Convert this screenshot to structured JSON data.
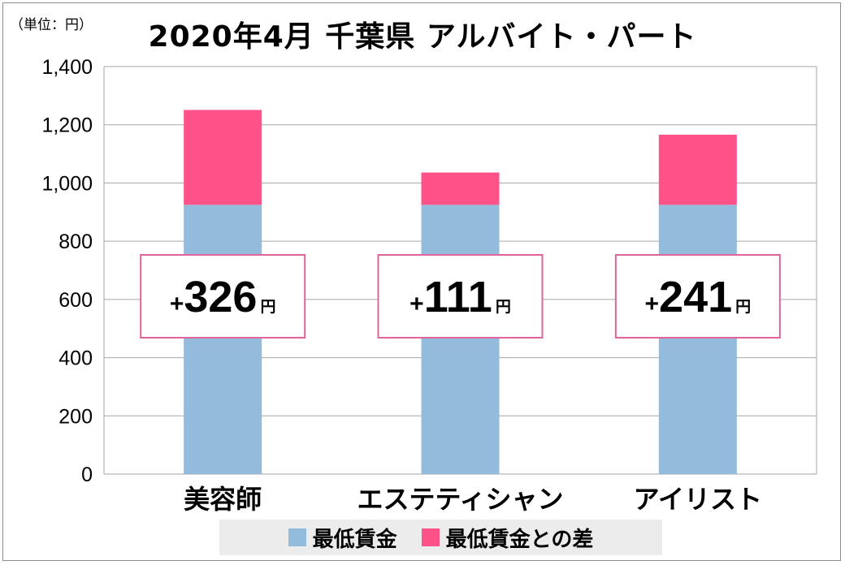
{
  "title": "2020年4月 千葉県 アルバイト・パート",
  "unit_label": "（単位：円）",
  "colors": {
    "base": "#92bbdc",
    "diff": "#ff5289",
    "box_border": "#e0649b"
  },
  "chart_data": {
    "type": "bar",
    "stacked": true,
    "categories": [
      "美容師",
      "エステティシャン",
      "アイリスト"
    ],
    "series": [
      {
        "name": "最低賃金",
        "values": [
          925,
          925,
          925
        ]
      },
      {
        "name": "最低賃金との差",
        "values": [
          326,
          111,
          241
        ]
      }
    ],
    "annotations": [
      {
        "sign": "+",
        "value": "326",
        "unit": "円"
      },
      {
        "sign": "+",
        "value": "111",
        "unit": "円"
      },
      {
        "sign": "+",
        "value": "241",
        "unit": "円"
      }
    ],
    "ylim": [
      0,
      1400
    ],
    "yticks": [
      0,
      200,
      400,
      600,
      800,
      1000,
      1200,
      1400
    ],
    "ytick_labels": [
      "0",
      "200",
      "400",
      "600",
      "800",
      "1,000",
      "1,200",
      "1,400"
    ],
    "grid": true,
    "legend_position": "bottom",
    "xlabel": "",
    "ylabel": ""
  }
}
